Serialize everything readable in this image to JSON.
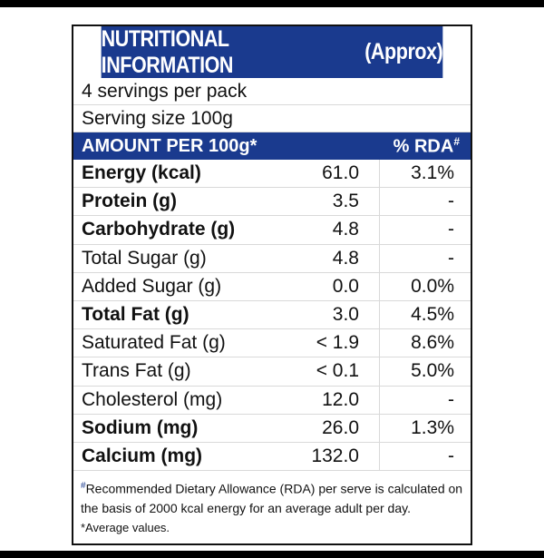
{
  "title": {
    "main": "NUTRITIONAL INFORMATION",
    "sub": "(Approx)"
  },
  "servings_per_pack": "4 servings per pack",
  "serving_size": "Serving size 100g",
  "header": {
    "amount": "AMOUNT PER 100g*",
    "rda": "% RDA",
    "rda_mark": "#"
  },
  "rows": [
    {
      "name": "Energy (kcal)",
      "value": "61.0",
      "rda": "3.1%",
      "bold": true
    },
    {
      "name": "Protein (g)",
      "value": "3.5",
      "rda": "-",
      "bold": true
    },
    {
      "name": "Carbohydrate (g)",
      "value": "4.8",
      "rda": "-",
      "bold": true
    },
    {
      "name": "Total Sugar (g)",
      "value": "4.8",
      "rda": "-",
      "bold": false
    },
    {
      "name": "Added Sugar (g)",
      "value": "0.0",
      "rda": "0.0%",
      "bold": false
    },
    {
      "name": "Total Fat (g)",
      "value": "3.0",
      "rda": "4.5%",
      "bold": true
    },
    {
      "name": "Saturated Fat (g)",
      "value": "< 1.9",
      "rda": "8.6%",
      "bold": false
    },
    {
      "name": "Trans Fat (g)",
      "value": "< 0.1",
      "rda": "5.0%",
      "bold": false
    },
    {
      "name": "Cholesterol (mg)",
      "value": "12.0",
      "rda": "-",
      "bold": false
    },
    {
      "name": "Sodium (mg)",
      "value": "26.0",
      "rda": "1.3%",
      "bold": true
    },
    {
      "name": "Calcium (mg)",
      "value": "132.0",
      "rda": "-",
      "bold": true
    }
  ],
  "footnotes": {
    "mark": "#",
    "rda_note": "Recommended Dietary Allowance (RDA) per serve is calculated on the basis of 2000 kcal energy for an average adult per day.",
    "average_note": "*Average values."
  },
  "colors": {
    "brand_blue": "#1a3a8e"
  }
}
